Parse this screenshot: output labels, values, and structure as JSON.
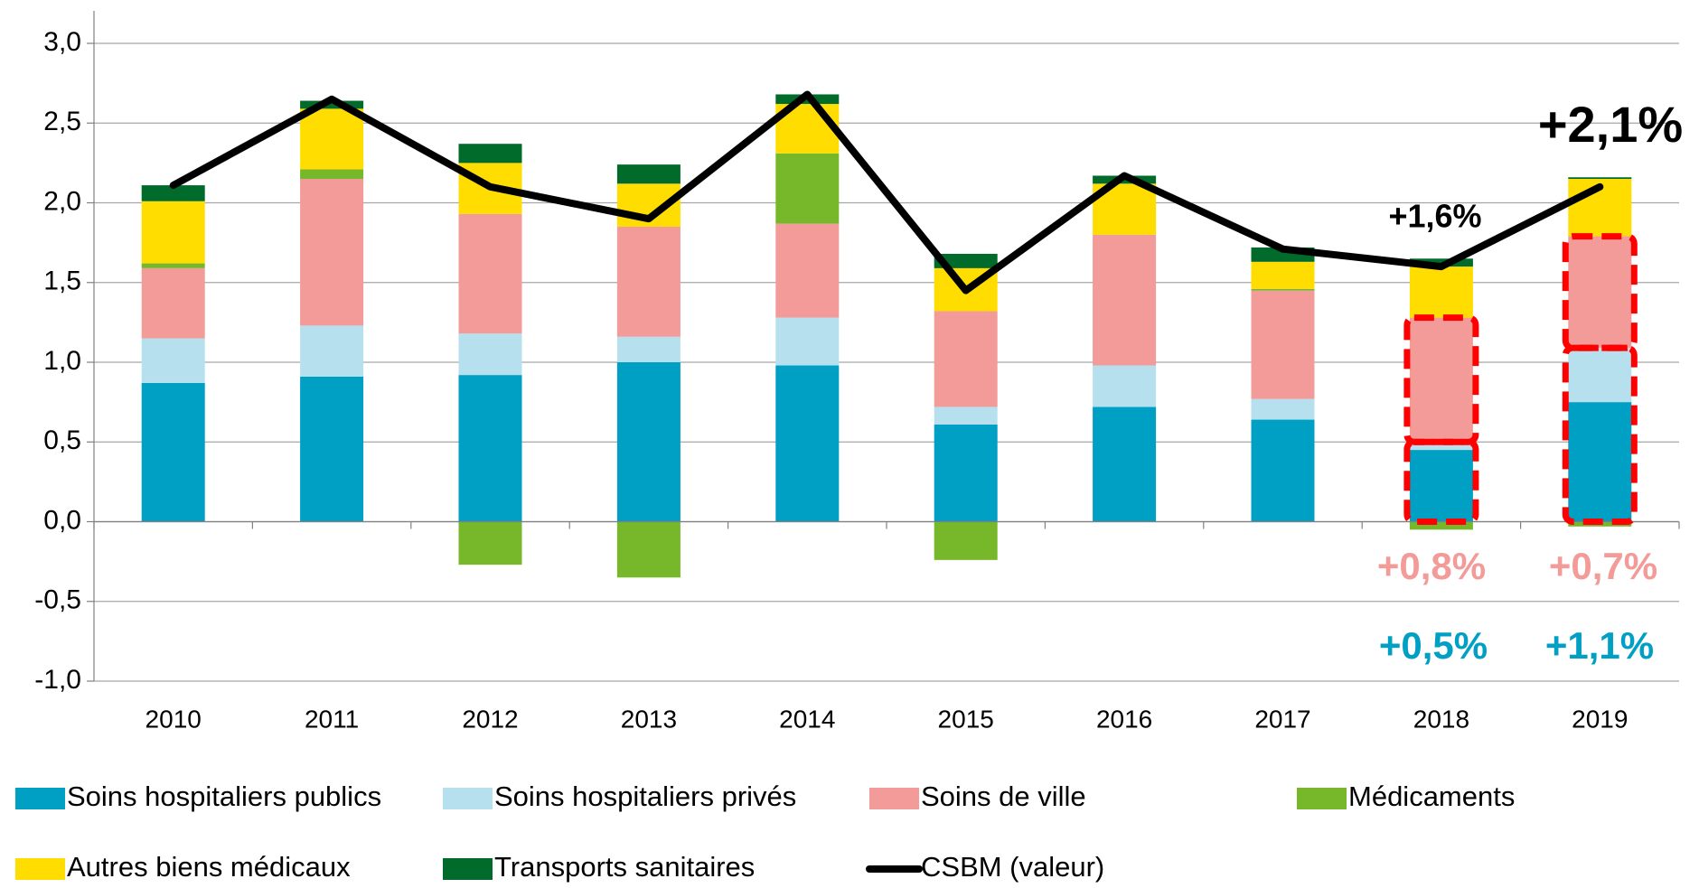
{
  "chart_data": {
    "type": "bar",
    "stacked": true,
    "grid": true,
    "categories": [
      "2010",
      "2011",
      "2012",
      "2013",
      "2014",
      "2015",
      "2016",
      "2017",
      "2018",
      "2019"
    ],
    "ylim": [
      -1,
      3
    ],
    "yticks": [
      {
        "value": -1,
        "label": "-1,0"
      },
      {
        "value": -0.5,
        "label": "-0,5"
      },
      {
        "value": 0,
        "label": "0,0"
      },
      {
        "value": 0.5,
        "label": "0,5"
      },
      {
        "value": 1,
        "label": "1,0"
      },
      {
        "value": 1.5,
        "label": "1,5"
      },
      {
        "value": 2,
        "label": "2,0"
      },
      {
        "value": 2.5,
        "label": "2,5"
      },
      {
        "value": 3,
        "label": "3,0"
      }
    ],
    "series": [
      {
        "name": "Soins hospitaliers publics",
        "color": "#009fc4",
        "values": [
          0.87,
          0.91,
          0.92,
          1.0,
          0.98,
          0.61,
          0.72,
          0.64,
          0.45,
          0.75
        ]
      },
      {
        "name": "Soins hospitaliers privés",
        "color": "#b6e0ee",
        "values": [
          0.28,
          0.32,
          0.26,
          0.16,
          0.3,
          0.11,
          0.26,
          0.13,
          0.05,
          0.34
        ]
      },
      {
        "name": "Soins de ville",
        "color": "#f29b98",
        "values": [
          0.44,
          0.92,
          0.75,
          0.69,
          0.59,
          0.6,
          0.82,
          0.68,
          0.78,
          0.7
        ]
      },
      {
        "name": "Médicaments",
        "color": "#76b82a",
        "values": [
          0.03,
          0.06,
          -0.27,
          -0.35,
          0.44,
          -0.24,
          0.0,
          0.01,
          -0.05,
          -0.03
        ]
      },
      {
        "name": "Autres biens médicaux",
        "color": "#ffdd00",
        "values": [
          0.39,
          0.38,
          0.32,
          0.27,
          0.31,
          0.27,
          0.32,
          0.17,
          0.32,
          0.36
        ]
      },
      {
        "name": "Transports sanitaires",
        "color": "#006b2a",
        "values": [
          0.1,
          0.05,
          0.12,
          0.12,
          0.06,
          0.09,
          0.05,
          0.09,
          0.05,
          0.01
        ]
      },
      {
        "name": "CSBM (valeur)",
        "color": "#000000",
        "type": "line",
        "values": [
          2.11,
          2.65,
          2.1,
          1.9,
          2.68,
          1.45,
          2.17,
          1.71,
          1.6,
          2.1
        ]
      }
    ],
    "annotations": [
      {
        "text": "+1,6%",
        "color": "#000000"
      },
      {
        "text": "+2,1%",
        "color": "#000000"
      },
      {
        "text": "+0,8%",
        "color": "#f29b98"
      },
      {
        "text": "+0,7%",
        "color": "#f29b98"
      },
      {
        "text": "+0,5%",
        "color": "#009fc4"
      },
      {
        "text": "+1,1%",
        "color": "#009fc4"
      }
    ]
  }
}
